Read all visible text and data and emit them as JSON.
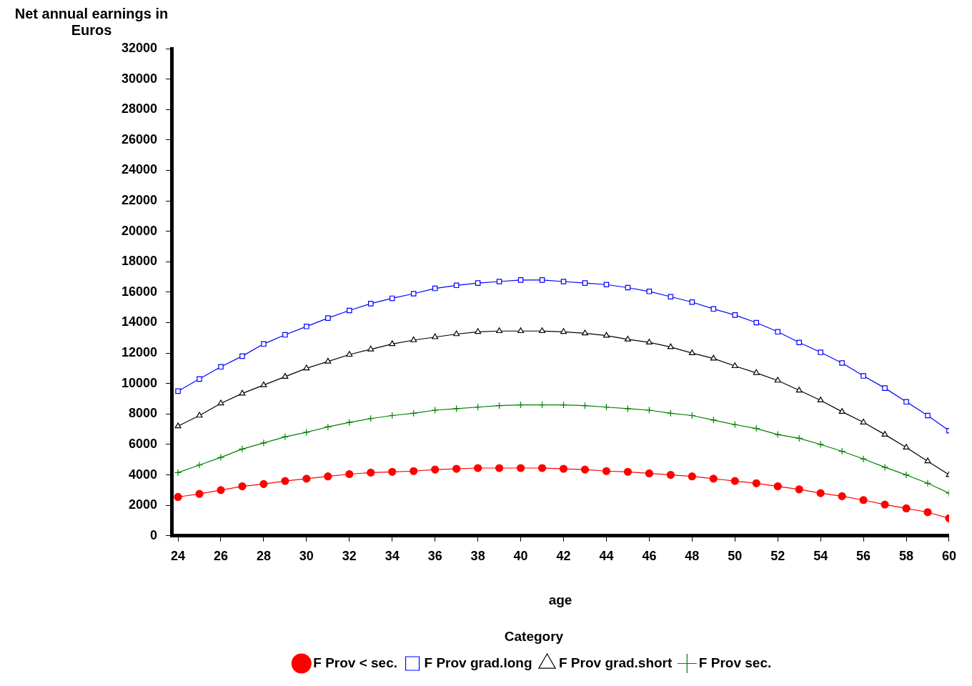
{
  "chart_data": {
    "type": "line",
    "ylabel": "Net annual earnings in Euros",
    "xlabel": "age",
    "legend_title": "Category",
    "legend": "bottom",
    "grid": false,
    "line_style": "solid",
    "x": [
      24,
      25,
      26,
      27,
      28,
      29,
      30,
      31,
      32,
      33,
      34,
      35,
      36,
      37,
      38,
      39,
      40,
      41,
      42,
      43,
      44,
      45,
      46,
      47,
      48,
      49,
      50,
      51,
      52,
      53,
      54,
      55,
      56,
      57,
      58,
      59,
      60
    ],
    "xlim": [
      23.7,
      60
    ],
    "xticks": [
      24,
      26,
      28,
      30,
      32,
      34,
      36,
      38,
      40,
      42,
      44,
      46,
      48,
      50,
      52,
      54,
      56,
      58,
      60
    ],
    "ylim": [
      0,
      32000
    ],
    "yticks": [
      0,
      2000,
      4000,
      6000,
      8000,
      10000,
      12000,
      14000,
      16000,
      18000,
      20000,
      22000,
      24000,
      26000,
      28000,
      30000,
      32000
    ],
    "series": [
      {
        "name": "F Prov < sec.",
        "color": "#ff0000",
        "marker": "circle",
        "values": [
          2550,
          2750,
          3000,
          3250,
          3400,
          3600,
          3750,
          3900,
          4050,
          4150,
          4200,
          4250,
          4350,
          4400,
          4450,
          4450,
          4450,
          4450,
          4400,
          4350,
          4250,
          4200,
          4100,
          4000,
          3900,
          3750,
          3600,
          3450,
          3250,
          3050,
          2800,
          2600,
          2350,
          2050,
          1800,
          1550,
          1150
        ]
      },
      {
        "name": "F Prov grad.long",
        "color": "#0000ff",
        "marker": "square",
        "values": [
          9500,
          10300,
          11100,
          11800,
          12600,
          13200,
          13750,
          14300,
          14800,
          15250,
          15600,
          15900,
          16250,
          16450,
          16600,
          16700,
          16800,
          16800,
          16700,
          16600,
          16500,
          16300,
          16050,
          15700,
          15350,
          14900,
          14500,
          14000,
          13400,
          12700,
          12050,
          11350,
          10500,
          9700,
          8800,
          7900,
          6900
        ]
      },
      {
        "name": "F Prov grad.short",
        "color": "#000000",
        "marker": "triangle",
        "values": [
          7200,
          7900,
          8700,
          9350,
          9900,
          10450,
          11000,
          11450,
          11900,
          12250,
          12600,
          12850,
          13050,
          13250,
          13400,
          13450,
          13450,
          13450,
          13400,
          13300,
          13150,
          12900,
          12700,
          12400,
          12000,
          11650,
          11150,
          10700,
          10200,
          9550,
          8900,
          8150,
          7450,
          6650,
          5800,
          4900,
          4000
        ]
      },
      {
        "name": "F Prov sec.",
        "color": "#008000",
        "marker": "cross",
        "values": [
          4150,
          4650,
          5150,
          5700,
          6100,
          6500,
          6800,
          7150,
          7450,
          7700,
          7900,
          8050,
          8250,
          8350,
          8450,
          8550,
          8600,
          8600,
          8600,
          8550,
          8450,
          8350,
          8250,
          8050,
          7900,
          7600,
          7300,
          7050,
          6650,
          6400,
          6000,
          5550,
          5050,
          4500,
          4000,
          3450,
          2800
        ]
      }
    ]
  }
}
